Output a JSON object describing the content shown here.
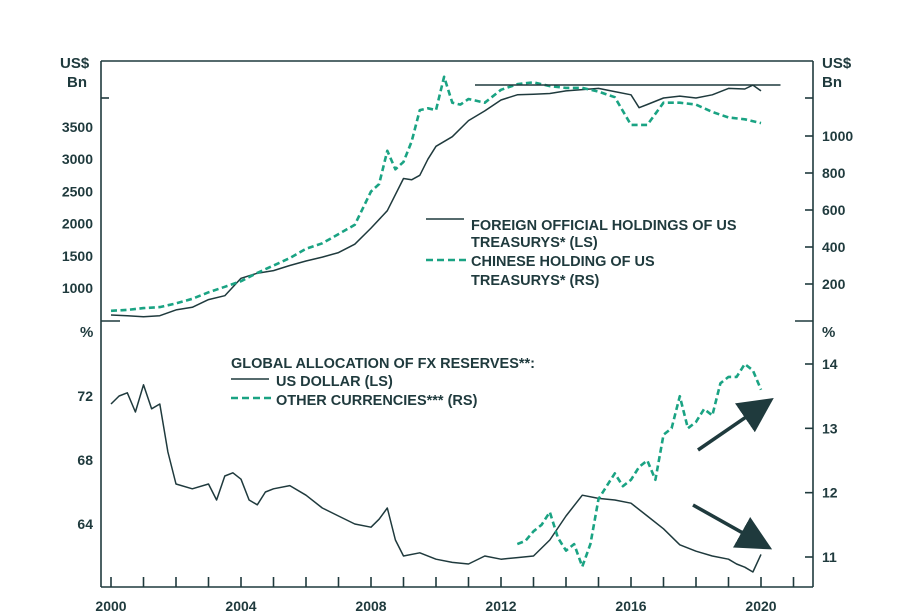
{
  "colors": {
    "ink": "#1f3a3d",
    "teal": "#1aa383",
    "background": "#ffffff"
  },
  "chart_data": [
    {
      "type": "line",
      "panel": "top",
      "left_unit": [
        "US$",
        "Bn"
      ],
      "right_unit": [
        "US$",
        "Bn"
      ],
      "left_ticks": [
        "1000",
        "1500",
        "2000",
        "2500",
        "3000",
        "3500"
      ],
      "right_ticks": [
        "200",
        "400",
        "600",
        "800",
        "1000"
      ],
      "ylim_left": [
        500,
        4000
      ],
      "ylim_right": [
        -50,
        1300
      ],
      "xlim": [
        2000,
        2021
      ],
      "legend": [
        {
          "lines": [
            "FOREIGN OFFICIAL HOLDINGS OF US",
            "TREASURYS* (LS)"
          ],
          "style": "solid"
        },
        {
          "lines": [
            "CHINESE HOLDING OF US",
            "TREASURYS* (RS)"
          ],
          "style": "dashed"
        }
      ],
      "series": [
        {
          "axis": "left",
          "style": "solid",
          "x": [
            2000,
            2000.5,
            2001,
            2001.5,
            2002,
            2002.5,
            2003,
            2003.5,
            2004,
            2004.5,
            2005,
            2005.5,
            2006,
            2006.5,
            2007,
            2007.5,
            2008,
            2008.5,
            2009,
            2009.25,
            2009.5,
            2009.75,
            2010,
            2010.5,
            2011,
            2011.5,
            2012,
            2012.5,
            2013,
            2013.5,
            2014,
            2014.5,
            2015,
            2015.5,
            2016,
            2016.25,
            2016.5,
            2017,
            2017.5,
            2018,
            2018.5,
            2019,
            2019.5,
            2019.75,
            2020
          ],
          "y": [
            580,
            570,
            555,
            570,
            660,
            700,
            820,
            880,
            1150,
            1230,
            1270,
            1350,
            1420,
            1480,
            1550,
            1680,
            1930,
            2200,
            2700,
            2680,
            2750,
            3000,
            3200,
            3350,
            3600,
            3750,
            3920,
            4000,
            4010,
            4020,
            4060,
            4080,
            4100,
            4050,
            4000,
            3800,
            3850,
            3950,
            3980,
            3950,
            4000,
            4100,
            4090,
            4150,
            4060
          ]
        },
        {
          "axis": "right",
          "style": "dashed",
          "x": [
            2000,
            2000.5,
            2001,
            2001.5,
            2002,
            2002.5,
            2003,
            2003.5,
            2004,
            2004.5,
            2005,
            2005.5,
            2006,
            2006.5,
            2007,
            2007.5,
            2008,
            2008.25,
            2008.5,
            2008.75,
            2009,
            2009.25,
            2009.5,
            2009.75,
            2010,
            2010.25,
            2010.5,
            2010.75,
            2011,
            2011.5,
            2012,
            2012.5,
            2013,
            2013.5,
            2014,
            2014.5,
            2015,
            2015.5,
            2016,
            2016.5,
            2017,
            2017.5,
            2018,
            2018.5,
            2019,
            2019.5,
            2020
          ],
          "y": [
            55,
            60,
            70,
            75,
            95,
            120,
            155,
            185,
            215,
            260,
            300,
            340,
            390,
            420,
            470,
            520,
            700,
            740,
            920,
            820,
            860,
            970,
            1140,
            1150,
            1140,
            1320,
            1180,
            1170,
            1200,
            1180,
            1250,
            1280,
            1290,
            1270,
            1260,
            1260,
            1240,
            1210,
            1060,
            1060,
            1180,
            1180,
            1170,
            1130,
            1100,
            1090,
            1070
          ]
        }
      ]
    },
    {
      "type": "line",
      "panel": "bottom",
      "left_unit": [
        "%"
      ],
      "right_unit": [
        "%"
      ],
      "left_ticks": [
        "64",
        "68",
        "72"
      ],
      "right_ticks": [
        "11",
        "12",
        "13",
        "14"
      ],
      "ylim_left": [
        60.2,
        75.8
      ],
      "ylim_right": [
        10.5,
        14.5
      ],
      "xlim": [
        2000,
        2021
      ],
      "x_ticks": [
        "2000",
        "2004",
        "2008",
        "2012",
        "2016",
        "2020"
      ],
      "legend_title": "GLOBAL ALLOCATION OF FX RESERVES**:",
      "legend": [
        {
          "lines": [
            "US DOLLAR (LS)"
          ],
          "style": "solid"
        },
        {
          "lines": [
            "OTHER CURRENCIES*** (RS)"
          ],
          "style": "dashed"
        }
      ],
      "series": [
        {
          "axis": "left",
          "style": "solid",
          "x": [
            2000,
            2000.25,
            2000.5,
            2000.75,
            2001,
            2001.25,
            2001.5,
            2001.75,
            2002,
            2002.5,
            2003,
            2003.25,
            2003.5,
            2003.75,
            2004,
            2004.25,
            2004.5,
            2004.75,
            2005,
            2005.5,
            2006,
            2006.5,
            2007,
            2007.5,
            2008,
            2008.25,
            2008.5,
            2008.75,
            2009,
            2009.5,
            2010,
            2010.5,
            2011,
            2011.5,
            2012,
            2012.5,
            2013,
            2013.5,
            2014,
            2014.5,
            2015,
            2015.5,
            2016,
            2016.5,
            2017,
            2017.5,
            2018,
            2018.5,
            2019,
            2019.25,
            2019.5,
            2019.75,
            2020
          ],
          "y": [
            71.5,
            72,
            72.2,
            71,
            72.7,
            71.2,
            71.5,
            68.5,
            66.5,
            66.2,
            66.5,
            65.5,
            67,
            67.2,
            66.8,
            65.5,
            65.2,
            66,
            66.2,
            66.4,
            65.8,
            65,
            64.5,
            64,
            63.8,
            64.3,
            65,
            63,
            62,
            62.2,
            61.8,
            61.6,
            61.5,
            62,
            61.8,
            61.9,
            62,
            63,
            64.5,
            65.8,
            65.6,
            65.5,
            65.3,
            64.5,
            63.7,
            62.7,
            62.3,
            62,
            61.8,
            61.5,
            61.3,
            61.0,
            62.1
          ]
        },
        {
          "axis": "right",
          "style": "dashed",
          "x": [
            2012.5,
            2012.75,
            2013,
            2013.25,
            2013.5,
            2013.75,
            2014,
            2014.25,
            2014.5,
            2014.75,
            2015,
            2015.25,
            2015.5,
            2015.75,
            2016,
            2016.25,
            2016.5,
            2016.75,
            2017,
            2017.25,
            2017.5,
            2017.75,
            2018,
            2018.25,
            2018.5,
            2018.75,
            2019,
            2019.25,
            2019.5,
            2019.75,
            2020
          ],
          "y": [
            11.2,
            11.25,
            11.4,
            11.5,
            11.7,
            11.3,
            11.1,
            11.2,
            10.85,
            11.2,
            11.9,
            12.1,
            12.3,
            12.1,
            12.2,
            12.4,
            12.5,
            12.2,
            12.9,
            13,
            13.5,
            13,
            13.1,
            13.3,
            13.2,
            13.7,
            13.8,
            13.8,
            14,
            13.9,
            13.6
          ]
        }
      ],
      "annotations": [
        "arrow-up",
        "arrow-down"
      ]
    }
  ]
}
